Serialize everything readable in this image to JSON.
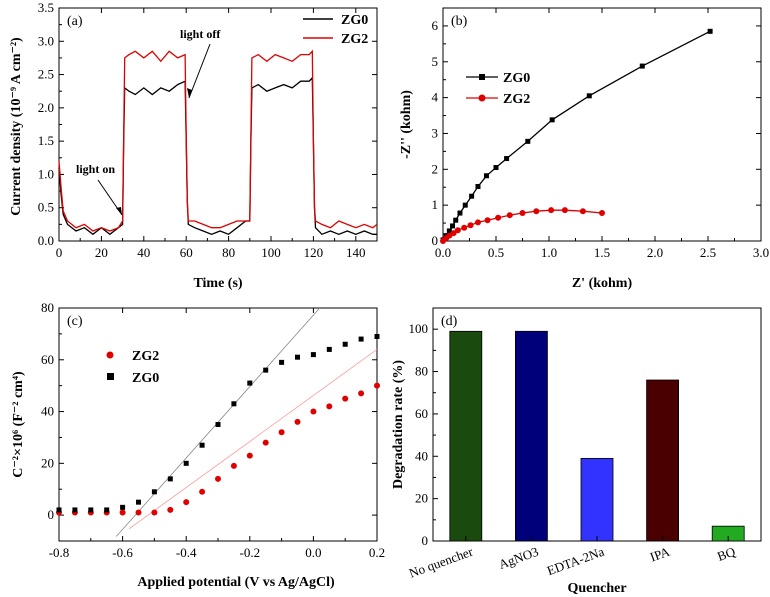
{
  "chart_data": [
    {
      "id": "a",
      "panel_label": "(a)",
      "type": "line",
      "title": "",
      "xlabel": "Time (s)",
      "ylabel": "Current density (10⁻⁹ A cm⁻²)",
      "xlim": [
        0,
        150
      ],
      "ylim": [
        0,
        3.5
      ],
      "xticks": [
        0,
        20,
        40,
        60,
        80,
        100,
        120,
        140
      ],
      "yticks": [
        0.0,
        0.5,
        1.0,
        1.5,
        2.0,
        2.5,
        3.0,
        3.5
      ],
      "legend_position": "top-right",
      "annotations": [
        {
          "text": "light on",
          "x": 30,
          "y": 0.3
        },
        {
          "text": "light off",
          "x": 60,
          "y": 2.5
        }
      ],
      "series": [
        {
          "name": "ZG0",
          "color": "#000000",
          "x": [
            0,
            1,
            2,
            4,
            8,
            12,
            16,
            20,
            24,
            28,
            30,
            30.5,
            31,
            33,
            36,
            40,
            44,
            48,
            52,
            56,
            59.5,
            60,
            60.5,
            61,
            64,
            68,
            72,
            76,
            80,
            84,
            88,
            90,
            90.5,
            91,
            94,
            98,
            102,
            106,
            110,
            114,
            118,
            119.5,
            120,
            120.5,
            121,
            124,
            128,
            132,
            136,
            140,
            144,
            148,
            150
          ],
          "values": [
            1.1,
            0.7,
            0.4,
            0.25,
            0.15,
            0.2,
            0.1,
            0.2,
            0.1,
            0.2,
            0.25,
            1.5,
            2.3,
            2.25,
            2.2,
            2.3,
            2.2,
            2.3,
            2.25,
            2.35,
            2.4,
            1.5,
            0.6,
            0.25,
            0.2,
            0.15,
            0.1,
            0.15,
            0.1,
            0.2,
            0.3,
            0.3,
            1.5,
            2.3,
            2.35,
            2.25,
            2.3,
            2.35,
            2.3,
            2.4,
            2.4,
            2.45,
            1.5,
            0.5,
            0.2,
            0.1,
            0.15,
            0.1,
            0.15,
            0.1,
            0.15,
            0.1,
            0.1
          ]
        },
        {
          "name": "ZG2",
          "color": "#e00000",
          "x": [
            0,
            1,
            2,
            4,
            8,
            12,
            16,
            20,
            24,
            28,
            30,
            30.5,
            31,
            33,
            36,
            40,
            44,
            48,
            52,
            56,
            59.5,
            60,
            60.5,
            61,
            64,
            68,
            72,
            76,
            80,
            84,
            88,
            90,
            90.5,
            91,
            94,
            98,
            102,
            106,
            110,
            114,
            118,
            119.5,
            120,
            120.5,
            121,
            124,
            128,
            132,
            136,
            140,
            144,
            148,
            150
          ],
          "values": [
            1.2,
            0.8,
            0.45,
            0.3,
            0.2,
            0.25,
            0.15,
            0.2,
            0.15,
            0.2,
            0.3,
            1.6,
            2.75,
            2.8,
            2.85,
            2.75,
            2.85,
            2.7,
            2.85,
            2.75,
            2.8,
            1.6,
            0.6,
            0.3,
            0.3,
            0.25,
            0.2,
            0.2,
            0.25,
            0.3,
            0.3,
            0.3,
            1.6,
            2.75,
            2.8,
            2.7,
            2.8,
            2.75,
            2.7,
            2.8,
            2.8,
            2.85,
            1.5,
            0.5,
            0.3,
            0.25,
            0.2,
            0.3,
            0.25,
            0.2,
            0.25,
            0.2,
            0.25
          ]
        }
      ]
    },
    {
      "id": "b",
      "panel_label": "(b)",
      "type": "line",
      "title": "",
      "xlabel": "Z' (kohm)",
      "ylabel": "-Z'' (kohm)",
      "xlim": [
        0,
        3.0
      ],
      "ylim": [
        0,
        6.5
      ],
      "xticks": [
        0.0,
        0.5,
        1.0,
        1.5,
        2.0,
        2.5,
        3.0
      ],
      "yticks": [
        0,
        1,
        2,
        3,
        4,
        5,
        6
      ],
      "legend_position": "middle-left",
      "series": [
        {
          "name": "ZG0",
          "color": "#000000",
          "marker": "square",
          "x": [
            0.0,
            0.03,
            0.06,
            0.09,
            0.12,
            0.16,
            0.21,
            0.27,
            0.33,
            0.41,
            0.5,
            0.6,
            0.8,
            1.03,
            1.38,
            1.88,
            2.52
          ],
          "values": [
            0.03,
            0.15,
            0.28,
            0.42,
            0.58,
            0.78,
            1.0,
            1.25,
            1.52,
            1.82,
            2.05,
            2.3,
            2.78,
            3.38,
            4.05,
            4.88,
            5.85
          ]
        },
        {
          "name": "ZG2",
          "color": "#e00000",
          "marker": "circle",
          "x": [
            0.0,
            0.03,
            0.06,
            0.1,
            0.14,
            0.2,
            0.26,
            0.33,
            0.42,
            0.52,
            0.63,
            0.75,
            0.88,
            1.02,
            1.15,
            1.32,
            1.5
          ],
          "values": [
            0.0,
            0.08,
            0.15,
            0.22,
            0.3,
            0.37,
            0.44,
            0.52,
            0.58,
            0.65,
            0.72,
            0.78,
            0.83,
            0.86,
            0.86,
            0.83,
            0.78
          ]
        }
      ]
    },
    {
      "id": "c",
      "panel_label": "(c)",
      "type": "scatter",
      "title": "",
      "xlabel": "Applied potential (V vs Ag/AgCl)",
      "ylabel": "C⁻²×10⁶ (F⁻² cm⁴)",
      "xlim": [
        -0.8,
        0.2
      ],
      "ylim": [
        -10,
        80
      ],
      "xticks": [
        -0.8,
        -0.6,
        -0.4,
        -0.2,
        0.0,
        0.2
      ],
      "yticks": [
        0,
        20,
        40,
        60,
        80
      ],
      "legend_position": "upper-left",
      "series": [
        {
          "name": "ZG2",
          "color": "#e00000",
          "marker": "circle",
          "x": [
            -0.8,
            -0.75,
            -0.7,
            -0.65,
            -0.6,
            -0.55,
            -0.5,
            -0.45,
            -0.4,
            -0.35,
            -0.3,
            -0.25,
            -0.2,
            -0.15,
            -0.1,
            -0.05,
            0.0,
            0.05,
            0.1,
            0.15,
            0.2
          ],
          "values": [
            1,
            1,
            1,
            1,
            1,
            1,
            1,
            2,
            5,
            9,
            14,
            19,
            23,
            28,
            32,
            36,
            40,
            42,
            45,
            47,
            50
          ]
        },
        {
          "name": "ZG0",
          "color": "#000000",
          "marker": "square",
          "x": [
            -0.8,
            -0.75,
            -0.7,
            -0.65,
            -0.6,
            -0.55,
            -0.5,
            -0.45,
            -0.4,
            -0.35,
            -0.3,
            -0.25,
            -0.2,
            -0.15,
            -0.1,
            -0.05,
            0.0,
            0.05,
            0.1,
            0.15,
            0.2
          ],
          "values": [
            2,
            2,
            2,
            2,
            3,
            5,
            9,
            14,
            20,
            27,
            35,
            43,
            51,
            56,
            59,
            61,
            62,
            64,
            66,
            68,
            69
          ]
        }
      ],
      "fit_lines": [
        {
          "series": "ZG0",
          "color": "#888888",
          "x": [
            -0.56,
            0.02
          ],
          "values": [
            0,
            80
          ]
        },
        {
          "series": "ZG2",
          "color": "#ff9999",
          "x": [
            -0.52,
            0.2
          ],
          "values": [
            0,
            64
          ]
        }
      ]
    },
    {
      "id": "d",
      "panel_label": "(d)",
      "type": "bar",
      "title": "",
      "xlabel": "Quencher",
      "ylabel": "Degradation rate (%)",
      "ylim": [
        0,
        110
      ],
      "yticks": [
        0,
        20,
        40,
        60,
        80,
        100
      ],
      "categories": [
        "No quencher",
        "AgNO3",
        "EDTA-2Na",
        "IPA",
        "BQ"
      ],
      "values": [
        99,
        99,
        39,
        76,
        7
      ],
      "colors": [
        "#1b4a0e",
        "#00007a",
        "#3333ff",
        "#4a0000",
        "#22aa22"
      ]
    }
  ]
}
